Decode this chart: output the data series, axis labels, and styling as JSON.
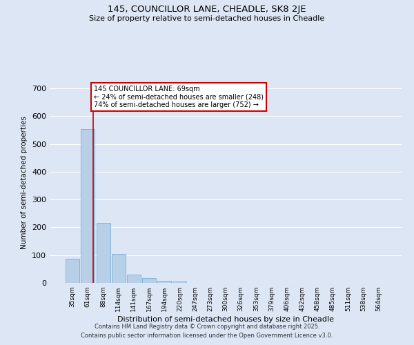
{
  "title1": "145, COUNCILLOR LANE, CHEADLE, SK8 2JE",
  "title2": "Size of property relative to semi-detached houses in Cheadle",
  "xlabel": "Distribution of semi-detached houses by size in Cheadle",
  "ylabel": "Number of semi-detached properties",
  "categories": [
    "35sqm",
    "61sqm",
    "88sqm",
    "114sqm",
    "141sqm",
    "167sqm",
    "194sqm",
    "220sqm",
    "247sqm",
    "273sqm",
    "300sqm",
    "326sqm",
    "353sqm",
    "379sqm",
    "406sqm",
    "432sqm",
    "458sqm",
    "485sqm",
    "511sqm",
    "538sqm",
    "564sqm"
  ],
  "values": [
    88,
    553,
    215,
    105,
    31,
    18,
    7,
    5,
    0,
    0,
    0,
    0,
    0,
    0,
    0,
    0,
    0,
    0,
    0,
    0,
    0
  ],
  "bar_color": "#b8cfe8",
  "bar_edge_color": "#7aadd4",
  "background_color": "#dce6f5",
  "grid_color": "#ffffff",
  "red_line_x": 1.33,
  "annotation_line1": "145 COUNCILLOR LANE: 69sqm",
  "annotation_line2": "← 24% of semi-detached houses are smaller (248)",
  "annotation_line3": "74% of semi-detached houses are larger (752) →",
  "annotation_box_color": "#ffffff",
  "annotation_border_color": "#cc0000",
  "ylim": [
    0,
    720
  ],
  "yticks": [
    0,
    100,
    200,
    300,
    400,
    500,
    600,
    700
  ],
  "footer1": "Contains HM Land Registry data © Crown copyright and database right 2025.",
  "footer2": "Contains public sector information licensed under the Open Government Licence v3.0."
}
